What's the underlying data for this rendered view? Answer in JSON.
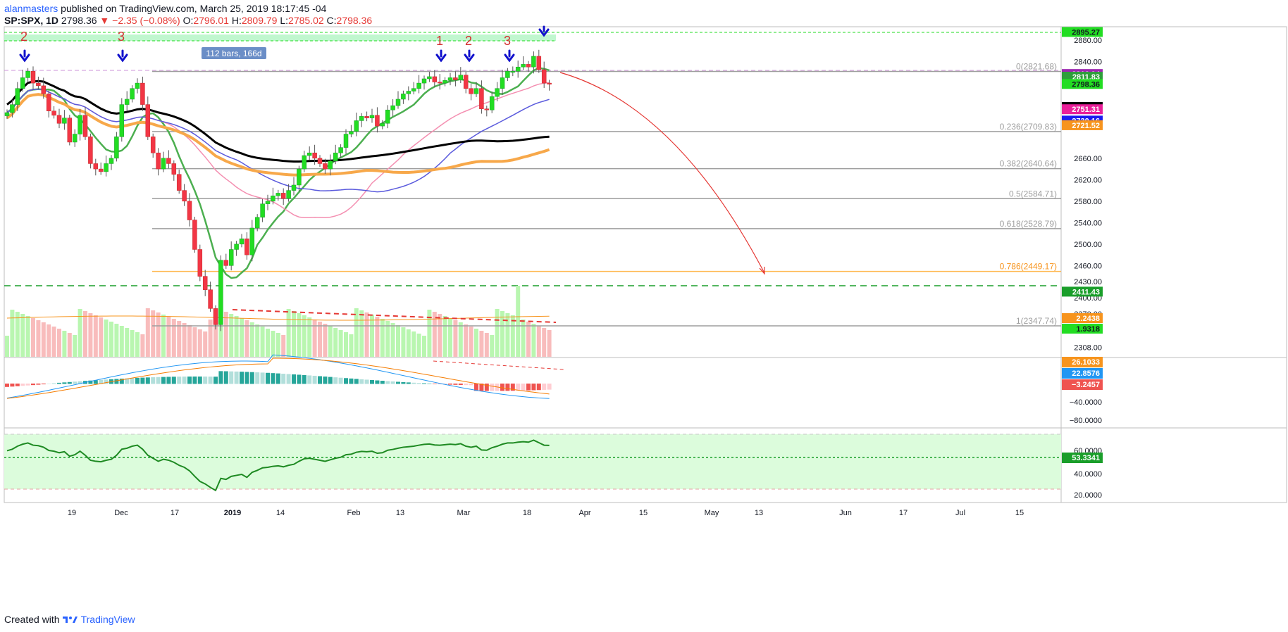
{
  "header": {
    "author": "alanmasters",
    "published": "published on TradingView.com, March 25, 2019 18:17:45 -04",
    "symbol": "SP:SPX, 1D",
    "last": "2798.36",
    "change_arrow": "▼",
    "change": "−2.35 (−0.08%)",
    "o_label": "O:",
    "o": "2796.01",
    "h_label": "H:",
    "h": "2809.79",
    "l_label": "L:",
    "l": "2785.02",
    "c_label": "C:",
    "c": "2798.36"
  },
  "footer": {
    "created": "Created with",
    "brand": "TradingView"
  },
  "colors": {
    "up": "#22dd22",
    "down": "#f23645",
    "ema_green": "#4caf50",
    "ma_black": "#000000",
    "ma_orange": "#f7a84a",
    "ma_blue": "#5b5bdd",
    "ma_pink": "#f48fb1",
    "arrow": "#1010cc",
    "wave": "#d32f2f",
    "fib": "#9e9e9e",
    "fib_786": "#ffb74d"
  },
  "chart_data": [
    {
      "type": "candlestick",
      "title": "SP:SPX, 1D",
      "ylim": [
        2290,
        2905
      ],
      "y_ticks": [
        "2880.00",
        "2840.00",
        "2800.00",
        "2760.00",
        "2720.00",
        "2660.00",
        "2620.00",
        "2580.00",
        "2540.00",
        "2500.00",
        "2460.00",
        "2430.00",
        "2400.00",
        "2370.00",
        "2340.00",
        "2308.00"
      ],
      "x_ticks": [
        "19",
        "Dec",
        "17",
        "2019",
        "14",
        "Feb",
        "13",
        "Mar",
        "18",
        "Apr",
        "15",
        "May",
        "13",
        "Jun",
        "17",
        "Jul",
        "15"
      ],
      "candles_close": [
        2745,
        2760,
        2790,
        2810,
        2822,
        2800,
        2795,
        2780,
        2748,
        2740,
        2725,
        2735,
        2690,
        2705,
        2740,
        2700,
        2650,
        2640,
        2635,
        2650,
        2660,
        2700,
        2760,
        2770,
        2790,
        2800,
        2760,
        2700,
        2670,
        2640,
        2660,
        2650,
        2630,
        2600,
        2580,
        2545,
        2490,
        2440,
        2415,
        2380,
        2350,
        2470,
        2460,
        2490,
        2500,
        2510,
        2480,
        2530,
        2550,
        2575,
        2580,
        2590,
        2595,
        2585,
        2600,
        2610,
        2640,
        2665,
        2670,
        2660,
        2650,
        2640,
        2655,
        2670,
        2680,
        2705,
        2710,
        2730,
        2738,
        2735,
        2740,
        2720,
        2725,
        2750,
        2758,
        2770,
        2780,
        2785,
        2790,
        2800,
        2808,
        2812,
        2802,
        2800,
        2805,
        2810,
        2806,
        2815,
        2790,
        2780,
        2790,
        2752,
        2750,
        2775,
        2790,
        2810,
        2822,
        2822,
        2830,
        2835,
        2830,
        2850,
        2825,
        2800,
        2798
      ],
      "price_labels": [
        {
          "label": "2895.27",
          "color": "#22dd22",
          "text": "#131722"
        },
        {
          "label": "2816.94",
          "color": "#9c27b0",
          "text": "#ffffff"
        },
        {
          "label": "2811.83",
          "color": "#2e9e3a",
          "text": "#ffffff"
        },
        {
          "label": "2798.36",
          "color": "#22dd22",
          "text": "#131722"
        },
        {
          "label": "2755.52",
          "color": "#000000",
          "text": "#ffffff"
        },
        {
          "label": "2751.31",
          "color": "#e91e99",
          "text": "#ffffff"
        },
        {
          "label": "2730.16",
          "color": "#1a1aee",
          "text": "#ffffff"
        },
        {
          "label": "2721.52",
          "color": "#f7941d",
          "text": "#ffffff"
        },
        {
          "label": "2411.43",
          "color": "#1a9e2a",
          "text": "#ffffff"
        },
        {
          "label": "2.2438",
          "color": "#f7941d",
          "text": "#ffffff"
        },
        {
          "label": "1.9318",
          "color": "#22dd22",
          "text": "#131722"
        }
      ],
      "fib_levels": [
        {
          "ratio": "0",
          "price": 2821.68,
          "label": "0(2821.68)"
        },
        {
          "ratio": "0.236",
          "price": 2709.83,
          "label": "0.236(2709.83)"
        },
        {
          "ratio": "0.382",
          "price": 2640.64,
          "label": "0.382(2640.64)"
        },
        {
          "ratio": "0.5",
          "price": 2584.71,
          "label": "0.5(2584.71)"
        },
        {
          "ratio": "0.618",
          "price": 2528.79,
          "label": "0.618(2528.79)"
        },
        {
          "ratio": "0.786",
          "price": 2449.17,
          "label": "0.786(2449.17)"
        },
        {
          "ratio": "1",
          "price": 2347.74,
          "label": "1(2347.74)"
        }
      ],
      "wave_labels": [
        "2",
        "3",
        "1",
        "2",
        "3"
      ],
      "range_label": "112 bars, 166d"
    },
    {
      "type": "line",
      "title": "MACD",
      "y_ticks": [
        "−40.0000",
        "−80.0000"
      ],
      "value_labels": [
        {
          "label": "26.1033",
          "color": "#f7941d"
        },
        {
          "label": "22.8576",
          "color": "#2196f3"
        },
        {
          "label": "−3.2457",
          "color": "#ef5350"
        }
      ]
    },
    {
      "type": "line",
      "title": "RSI",
      "y_ticks": [
        "60.0000",
        "40.0000",
        "20.0000"
      ],
      "value_labels": [
        {
          "label": "53.3341",
          "color": "#1a9e2a"
        }
      ]
    }
  ]
}
